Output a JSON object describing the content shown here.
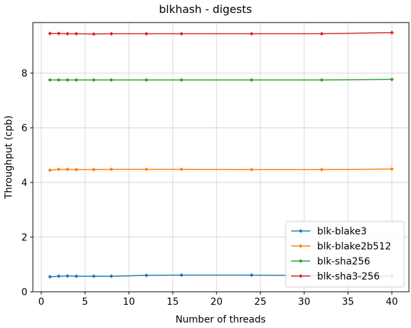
{
  "chart_data": {
    "type": "line",
    "title": "blkhash - digests",
    "xlabel": "Number of threads",
    "ylabel": "Throughput (cpb)",
    "xlim": [
      -0.95,
      41.95
    ],
    "ylim": [
      0,
      9.85
    ],
    "xticks": [
      0,
      5,
      10,
      15,
      20,
      25,
      30,
      35,
      40
    ],
    "yticks": [
      0,
      2,
      4,
      6,
      8
    ],
    "grid": true,
    "legend_position": "lower-right",
    "x": [
      1,
      2,
      3,
      4,
      6,
      8,
      12,
      16,
      24,
      32,
      40
    ],
    "series": [
      {
        "name": "blk-blake3",
        "color": "#1f77b4",
        "values": [
          0.55,
          0.57,
          0.58,
          0.57,
          0.57,
          0.57,
          0.6,
          0.61,
          0.61,
          0.59,
          0.57
        ]
      },
      {
        "name": "blk-blake2b512",
        "color": "#ff7f0e",
        "values": [
          4.45,
          4.48,
          4.48,
          4.47,
          4.47,
          4.48,
          4.48,
          4.48,
          4.47,
          4.47,
          4.49
        ]
      },
      {
        "name": "blk-sha256",
        "color": "#2ca02c",
        "values": [
          7.75,
          7.75,
          7.75,
          7.75,
          7.75,
          7.75,
          7.75,
          7.75,
          7.75,
          7.75,
          7.77
        ]
      },
      {
        "name": "blk-sha3-256",
        "color": "#d62728",
        "values": [
          9.45,
          9.45,
          9.44,
          9.44,
          9.43,
          9.44,
          9.44,
          9.44,
          9.44,
          9.44,
          9.48
        ]
      }
    ]
  }
}
